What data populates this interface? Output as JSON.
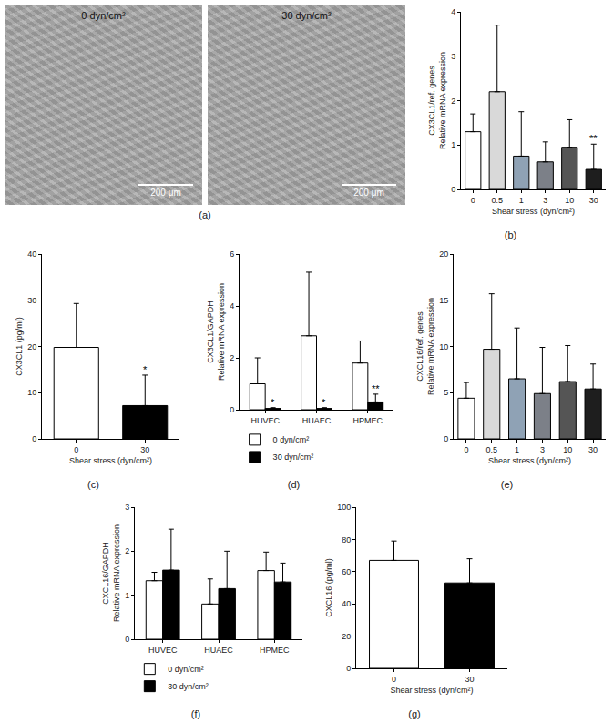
{
  "images": {
    "panel_label": "(a)",
    "items": [
      {
        "caption": "0 dyn/cm²",
        "scale_bar": "200 μm"
      },
      {
        "caption": "30 dyn/cm²",
        "scale_bar": "200 μm"
      }
    ]
  },
  "chart_data": [
    {
      "type": "bar",
      "panel_label": "(b)",
      "ylabel": [
        "CX3CL1/ref. genes",
        "Relative mRNA expression"
      ],
      "xlabel": "Shear stress (dyn/cm²)",
      "categories": [
        "0",
        "0.5",
        "1",
        "3",
        "10",
        "30"
      ],
      "values": [
        1.3,
        2.2,
        0.75,
        0.62,
        0.95,
        0.45
      ],
      "errors": [
        0.4,
        1.5,
        1.0,
        0.45,
        0.62,
        0.57
      ],
      "significance": [
        null,
        null,
        null,
        null,
        null,
        "**"
      ],
      "colors": [
        "#ffffff",
        "#d9d9d9",
        "#8fa2b5",
        "#7c8088",
        "#555555",
        "#1e1e1e"
      ],
      "ylim": [
        0,
        4
      ],
      "yticks": [
        0,
        1,
        2,
        3,
        4
      ]
    },
    {
      "type": "bar",
      "panel_label": "(c)",
      "ylabel": [
        "CX3CL1 (pg/ml)"
      ],
      "xlabel": "Shear stress (dyn/cm²)",
      "categories": [
        "0",
        "30"
      ],
      "values": [
        19.8,
        7.2
      ],
      "errors": [
        9.5,
        6.6
      ],
      "significance": [
        null,
        "*"
      ],
      "colors": [
        "#ffffff",
        "#000000"
      ],
      "ylim": [
        0,
        40
      ],
      "yticks": [
        0,
        10,
        20,
        30,
        40
      ]
    },
    {
      "type": "bar",
      "panel_label": "(d)",
      "ylabel": [
        "CX3CL1/GAPDH",
        "Relative mRNA expression"
      ],
      "categories": [
        "HUVEC",
        "HUAEC",
        "HPMEC"
      ],
      "series": [
        {
          "name": "0 dyn/cm²",
          "color": "#ffffff",
          "values": [
            1.0,
            2.85,
            1.8
          ],
          "errors": [
            1.0,
            2.45,
            0.85
          ],
          "significance": [
            null,
            null,
            null
          ]
        },
        {
          "name": "30 dyn/cm²",
          "color": "#000000",
          "values": [
            0.05,
            0.05,
            0.3
          ],
          "errors": [
            0.03,
            0.03,
            0.3
          ],
          "significance": [
            "*",
            "*",
            "**"
          ]
        }
      ],
      "legend": "bottom left",
      "ylim": [
        0,
        6
      ],
      "yticks": [
        0,
        2,
        4,
        6
      ]
    },
    {
      "type": "bar",
      "panel_label": "(e)",
      "ylabel": [
        "CXCL16/ref. genes",
        "Relative mRNA expression"
      ],
      "xlabel": "Shear stress (dyn/cm²)",
      "categories": [
        "0",
        "0.5",
        "1",
        "3",
        "10",
        "30"
      ],
      "values": [
        4.4,
        9.7,
        6.5,
        4.9,
        6.2,
        5.4
      ],
      "errors": [
        1.7,
        6.0,
        5.5,
        5.0,
        3.9,
        2.7
      ],
      "colors": [
        "#ffffff",
        "#d9d9d9",
        "#8fa2b5",
        "#7c8088",
        "#555555",
        "#1e1e1e"
      ],
      "ylim": [
        0,
        20
      ],
      "yticks": [
        0,
        5,
        10,
        15,
        20
      ]
    },
    {
      "type": "bar",
      "panel_label": "(f)",
      "ylabel": [
        "CXCL16/GAPDH",
        "Relative mRNA expression"
      ],
      "categories": [
        "HUVEC",
        "HUAEC",
        "HPMEC"
      ],
      "series": [
        {
          "name": "0 dyn/cm²",
          "color": "#ffffff",
          "values": [
            1.33,
            0.8,
            1.56
          ],
          "errors": [
            0.19,
            0.57,
            0.42
          ]
        },
        {
          "name": "30 dyn/cm²",
          "color": "#000000",
          "values": [
            1.57,
            1.15,
            1.3
          ],
          "errors": [
            0.93,
            0.85,
            0.43
          ]
        }
      ],
      "legend": "bottom left",
      "ylim": [
        0,
        3
      ],
      "yticks": [
        0,
        1,
        2,
        3
      ]
    },
    {
      "type": "bar",
      "panel_label": "(g)",
      "ylabel": [
        "CXCL16 (pg/ml)"
      ],
      "xlabel": "Shear stress (dyn/cm²)",
      "categories": [
        "0",
        "30"
      ],
      "values": [
        67,
        53
      ],
      "errors": [
        12,
        15
      ],
      "colors": [
        "#ffffff",
        "#000000"
      ],
      "ylim": [
        0,
        100
      ],
      "yticks": [
        0,
        20,
        40,
        60,
        80,
        100
      ]
    }
  ]
}
